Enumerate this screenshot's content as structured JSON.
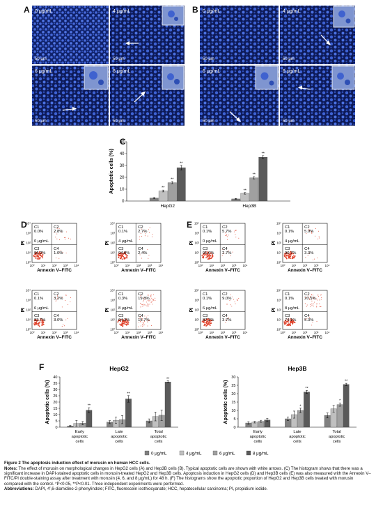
{
  "panels": {
    "A": "A",
    "B": "B",
    "C": "C",
    "D": "D",
    "E": "E",
    "F": "F"
  },
  "colors": {
    "bar0": "#808080",
    "bar1": "#c0c0c0",
    "bar2": "#a0a0a0",
    "bar3": "#5a5a5a",
    "micro_bg": "#0d1a58",
    "nuclei": "#3e63d6",
    "flow_dot": "#e0432c"
  },
  "micrographs": {
    "scale_bar": "50 μm",
    "A": [
      "0 μg/mL",
      "4 μg/mL",
      "6 μg/mL",
      "8 μg/mL"
    ],
    "B": [
      "0 μg/mL",
      "4 μg/mL",
      "6 μg/mL",
      "8 μg/mL"
    ]
  },
  "chart_data": [
    {
      "id": "C",
      "type": "bar",
      "ylabel": "Apoptotic cells (%)",
      "ylim": [
        0,
        50
      ],
      "yticks": [
        "0",
        "10",
        "20",
        "30",
        "40",
        "50"
      ],
      "categories": [
        "HepG2",
        "Hep3B"
      ],
      "series": [
        {
          "values": [
            2.5,
            1.8
          ],
          "errors": [
            0.6,
            0.4
          ],
          "sig": [
            "",
            ""
          ]
        },
        {
          "values": [
            8.5,
            6.5
          ],
          "errors": [
            0.8,
            0.7
          ],
          "sig": [
            "**",
            "**"
          ]
        },
        {
          "values": [
            15.5,
            19.5
          ],
          "errors": [
            0.9,
            1.1
          ],
          "sig": [
            "**",
            "**"
          ]
        },
        {
          "values": [
            28.0,
            37.0
          ],
          "errors": [
            2.0,
            1.3
          ],
          "sig": [
            "**",
            "**"
          ]
        }
      ]
    },
    {
      "id": "F-HepG2",
      "type": "bar",
      "title": "HepG2",
      "ylabel": "Apoptotic cells (%)",
      "ylim": [
        0,
        40
      ],
      "yticks": [
        "0",
        "5",
        "10",
        "15",
        "20",
        "25",
        "30",
        "35",
        "40"
      ],
      "categories": [
        "Early apoptotic cells",
        "Late apoptotic cells",
        "Total apoptotic cells"
      ],
      "category_lines": [
        [
          "Early",
          "apoptotic",
          "cells"
        ],
        [
          "Late",
          "apoptotic",
          "cells"
        ],
        [
          "Total",
          "apoptotic",
          "cells"
        ]
      ],
      "series": [
        {
          "name": "0 μg/mL",
          "values": [
            1.0,
            4.0,
            5.0
          ],
          "errors": [
            0.4,
            1.2,
            1.6
          ],
          "sig": [
            "",
            "",
            ""
          ]
        },
        {
          "name": "4 μg/mL",
          "values": [
            3.0,
            5.5,
            8.5
          ],
          "errors": [
            2.3,
            2.4,
            3.5
          ],
          "sig": [
            "",
            "",
            ""
          ]
        },
        {
          "name": "6 μg/mL",
          "values": [
            3.2,
            6.0,
            9.5
          ],
          "errors": [
            1.3,
            3.2,
            4.2
          ],
          "sig": [
            "",
            "",
            ""
          ]
        },
        {
          "name": "8 μg/mL",
          "values": [
            13.5,
            22.5,
            36.0
          ],
          "errors": [
            2.0,
            2.6,
            0.8
          ],
          "sig": [
            "**",
            "**",
            "**"
          ]
        }
      ]
    },
    {
      "id": "F-Hep3B",
      "type": "bar",
      "title": "Hep3B",
      "ylabel": "Apoptotic cells (%)",
      "ylim": [
        0,
        30
      ],
      "yticks": [
        "0",
        "5",
        "10",
        "15",
        "20",
        "25",
        "30"
      ],
      "categories": [
        "Early apoptotic cells",
        "Late apoptotic cells",
        "Total apoptotic cells"
      ],
      "category_lines": [
        [
          "Early",
          "apoptotic",
          "cells"
        ],
        [
          "Late",
          "apoptotic",
          "cells"
        ],
        [
          "Total",
          "apoptotic",
          "cells"
        ]
      ],
      "series": [
        {
          "name": "0 μg/mL",
          "values": [
            2.5,
            5.0,
            7.0
          ],
          "errors": [
            0.8,
            1.1,
            1.5
          ],
          "sig": [
            "",
            "",
            ""
          ]
        },
        {
          "name": "4 μg/mL",
          "values": [
            3.0,
            7.5,
            11.0
          ],
          "errors": [
            0.5,
            2.1,
            2.0
          ],
          "sig": [
            "",
            "",
            ""
          ]
        },
        {
          "name": "6 μg/mL",
          "values": [
            3.5,
            10.0,
            13.5
          ],
          "errors": [
            0.6,
            1.3,
            1.0
          ],
          "sig": [
            "",
            "*",
            "*"
          ]
        },
        {
          "name": "8 μg/mL",
          "values": [
            4.3,
            21.0,
            25.5
          ],
          "errors": [
            0.9,
            0.9,
            0.7
          ],
          "sig": [
            "",
            "**",
            "**"
          ]
        }
      ]
    }
  ],
  "legend": [
    "0 μg/mL",
    "4 μg/mL",
    "6 μg/mL",
    "8 μg/mL"
  ],
  "flow": {
    "xlabel": "Annexin V–FITC",
    "ylabel": "PI",
    "ticks": [
      "10⁰",
      "10¹",
      "10²",
      "10³",
      "10⁴"
    ],
    "quad": [
      "C1",
      "C2",
      "C3",
      "C4"
    ],
    "D": [
      {
        "dose": "0 μg/mL",
        "c1": "0.0%",
        "c2": "2.8%",
        "c3": "96.2%",
        "c4": "1.0%"
      },
      {
        "dose": "4 μg/mL",
        "c1": "0.1%",
        "c2": "2.7%",
        "c3": "94.8%",
        "c4": "2.4%"
      },
      {
        "dose": "6 μg/mL",
        "c1": "0.1%",
        "c2": "3.2%",
        "c3": "93.7%",
        "c4": "3.0%"
      },
      {
        "dose": "8 μg/mL",
        "c1": "0.3%",
        "c2": "19.8%",
        "c3": "64.3%",
        "c4": "15.7%"
      }
    ],
    "E": [
      {
        "dose": "0 μg/mL",
        "c1": "0.1%",
        "c2": "5.7%",
        "c3": "91.6%",
        "c4": "2.7%"
      },
      {
        "dose": "4 μg/mL",
        "c1": "0.1%",
        "c2": "5.9%",
        "c3": "90.7%",
        "c4": "3.3%"
      },
      {
        "dose": "6 μg/mL",
        "c1": "0.1%",
        "c2": "9.0%",
        "c3": "87.2%",
        "c4": "3.7%"
      },
      {
        "dose": "8 μg/mL",
        "c1": "0.1%",
        "c2": "20.5%",
        "c3": "74.1%",
        "c4": "5.3%"
      }
    ]
  },
  "caption": {
    "title": "Figure 2 The apoptosis induction effect of morusin on human HCC cells.",
    "notes_label": "Notes:",
    "notes": " The effect of morusin on morphological changes in HepG2 cells (A) and Hep3B cells (B). Typical apoptotic cells are shown with white arrows. (C) The histogram shows that there was a significant increase in DAPI-stained apoptotic cells in morusin-treated HepG2 and Hep3B cells. Apoptosis induction in HepG2 cells (D) and Hep3B cells (E) was also measured with the Annexin V–FITC/PI double-staining assay after treatment with morusin (4, 6, and 8 μg/mL) for 48 h. (F) The histograms show the apoptotic proportion of HepG2 and Hep3B cells treated with morusin compared with the control. *P<0.05, **P<0.01. Three independent experiments were performed.",
    "abbr_label": "Abbreviations:",
    "abbr": " DAPI, 4′,6-diamidino-2-phenylindole; FITC, fluorescein isothiocyanate; HCC, hepatocellular carcinoma; PI, propidium iodide."
  }
}
